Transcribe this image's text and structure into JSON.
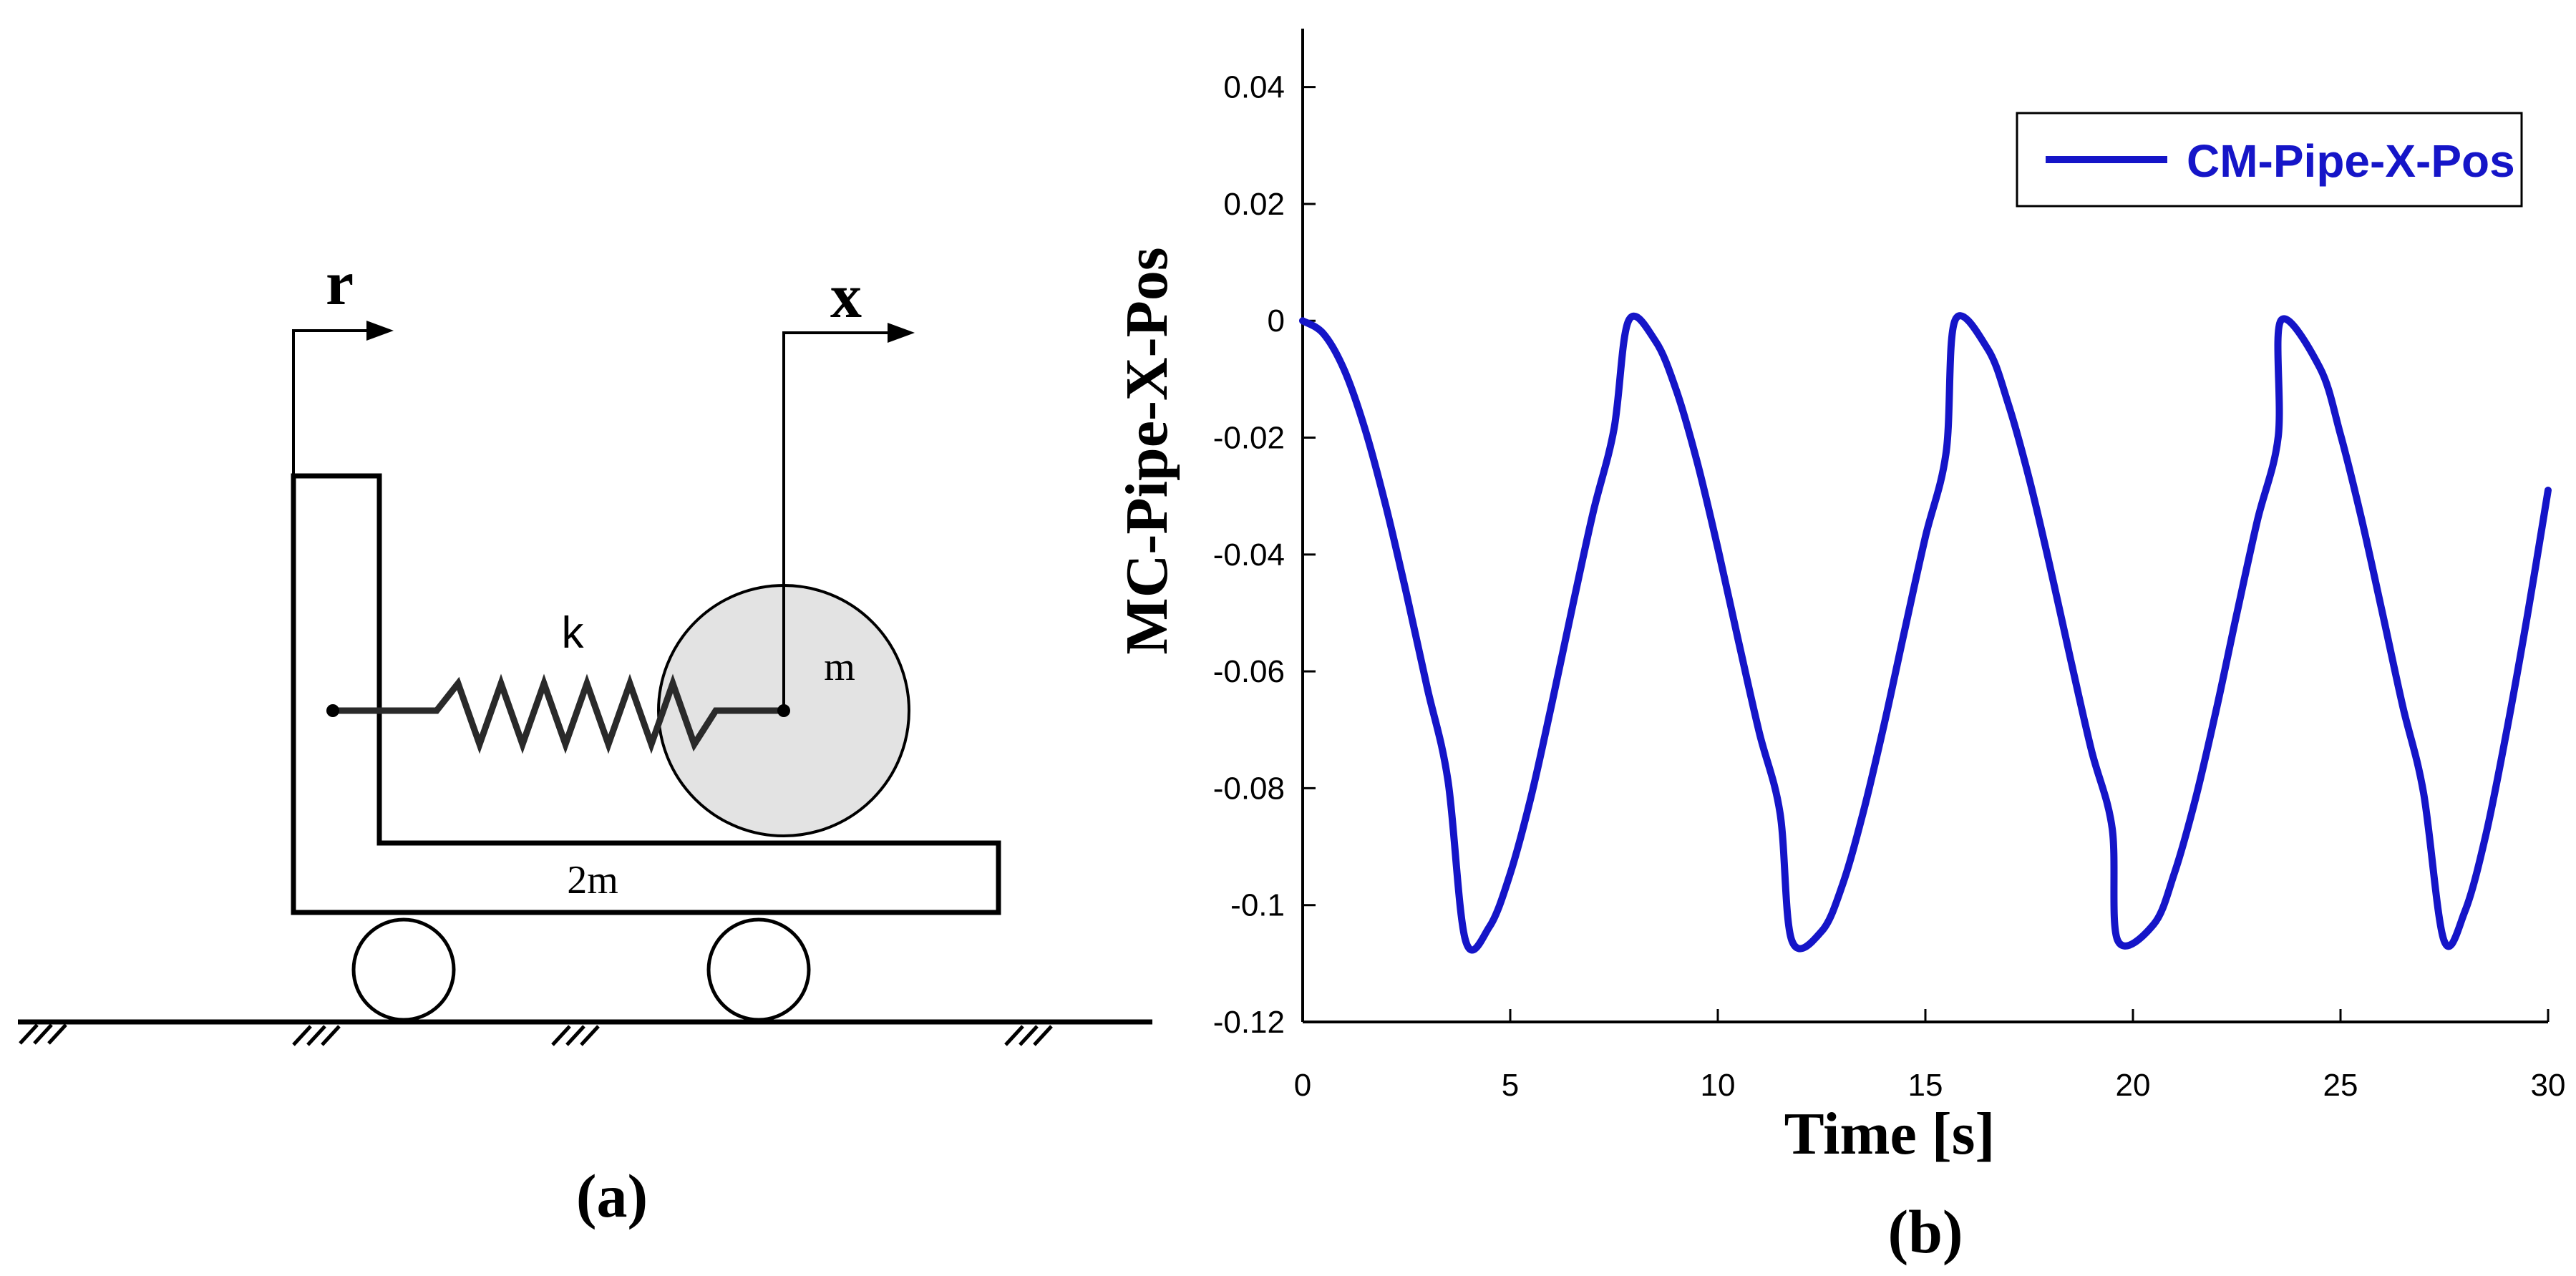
{
  "diagram": {
    "label_r": "r",
    "label_x": "x",
    "label_k": "k",
    "label_m": "m",
    "label_2m": "2m",
    "caption": "(a)"
  },
  "chart_caption": "(b)",
  "chart_data": {
    "type": "line",
    "xlabel": "Time [s]",
    "ylabel": "MC-Pipe-X-Pos",
    "xlim": [
      0,
      30
    ],
    "ylim": [
      -0.12,
      0.05
    ],
    "x_ticks": [
      0,
      5,
      10,
      15,
      20,
      25,
      30
    ],
    "x_tick_labels": [
      "0",
      "5",
      "10",
      "15",
      "20",
      "25",
      "30"
    ],
    "y_ticks": [
      0.04,
      0.02,
      0,
      -0.02,
      -0.04,
      -0.06,
      -0.08,
      -0.1,
      -0.12
    ],
    "y_tick_labels": [
      "0.04",
      "0.02",
      "0",
      "-0.02",
      "-0.04",
      "-0.06",
      "-0.08",
      "-0.1",
      "-0.12"
    ],
    "grid": false,
    "legend_position": "top-right",
    "series": [
      {
        "name": "CM-Pipe-X-Pos",
        "color": "#1515C8",
        "x": [
          0,
          0.5,
          1,
          1.5,
          2,
          2.5,
          3,
          3.5,
          3.92,
          4.5,
          5,
          5.5,
          6,
          6.5,
          7,
          7.5,
          7.85,
          8.5,
          9,
          9.5,
          10,
          10.5,
          11,
          11.5,
          11.78,
          12.5,
          13,
          13.5,
          14,
          14.5,
          15,
          15.5,
          15.71,
          16.5,
          17,
          17.5,
          18,
          18.5,
          19,
          19.5,
          19.63,
          20.5,
          21,
          21.5,
          22,
          22.5,
          23,
          23.5,
          23.56,
          24.5,
          25,
          25.5,
          26,
          26.5,
          27,
          27.49,
          28,
          28.5,
          29,
          29.5,
          30
        ],
        "y": [
          0,
          -0.0022,
          -0.0084,
          -0.0185,
          -0.0316,
          -0.0467,
          -0.0628,
          -0.0787,
          -0.106,
          -0.1037,
          -0.0946,
          -0.0815,
          -0.0656,
          -0.0489,
          -0.0327,
          -0.0185,
          0,
          -0.0035,
          -0.0119,
          -0.0241,
          -0.0389,
          -0.0549,
          -0.0705,
          -0.0843,
          -0.106,
          -0.1045,
          -0.0966,
          -0.0842,
          -0.0693,
          -0.053,
          -0.037,
          -0.0225,
          0,
          -0.0048,
          -0.0143,
          -0.027,
          -0.042,
          -0.058,
          -0.0735,
          -0.0869,
          -0.106,
          -0.1033,
          -0.0945,
          -0.082,
          -0.0668,
          -0.0502,
          -0.0341,
          -0.0198,
          0,
          -0.008,
          -0.0195,
          -0.0337,
          -0.0497,
          -0.066,
          -0.0808,
          -0.106,
          -0.101,
          -0.088,
          -0.0703,
          -0.0505,
          -0.029
        ]
      }
    ]
  }
}
